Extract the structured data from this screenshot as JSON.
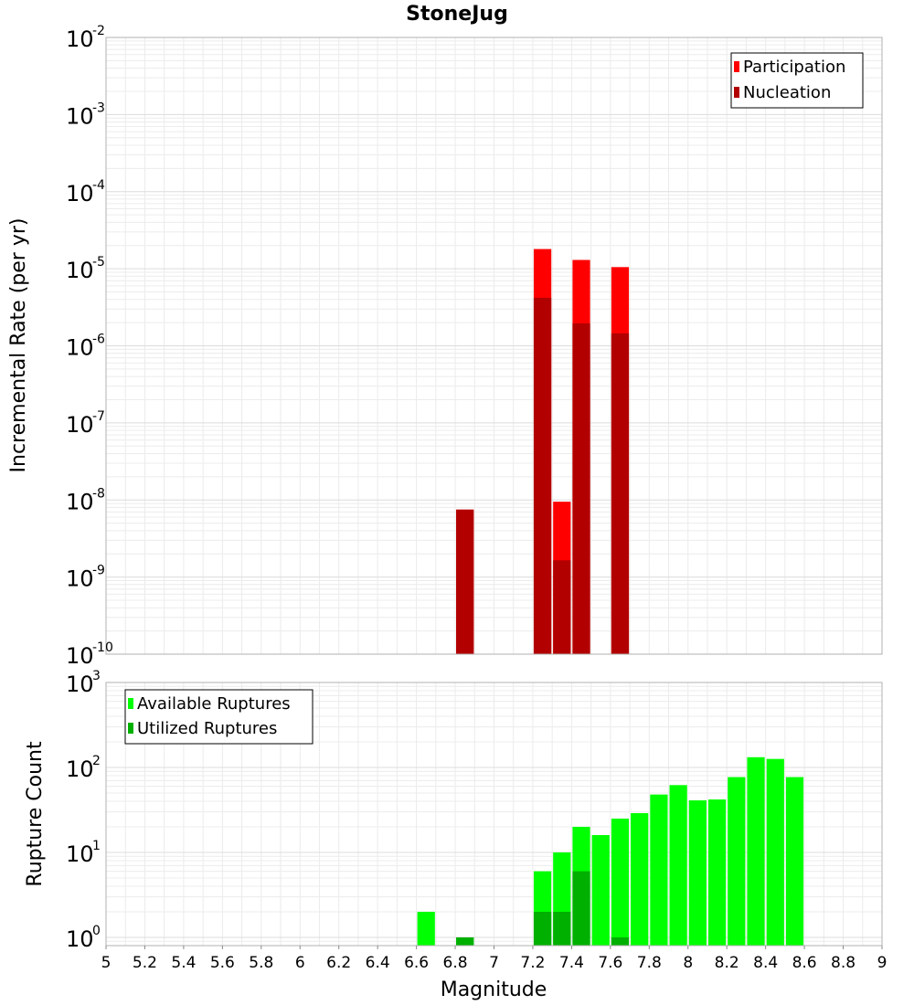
{
  "chart_data": [
    {
      "type": "bar",
      "panel": "top",
      "title": "StoneJug",
      "ylabel": "Incremental Rate (per yr)",
      "yscale": "log",
      "ylim": [
        1e-10,
        0.01
      ],
      "xlim": [
        5,
        9
      ],
      "grid": true,
      "legend_position": "top-right",
      "legend": [
        "Participation",
        "Nucleation"
      ],
      "colors": {
        "Participation": "#ff0000",
        "Nucleation": "#b20000"
      },
      "bar_width": 0.1,
      "series": [
        {
          "name": "Participation",
          "x": [
            6.85,
            7.25,
            7.35,
            7.45,
            7.65
          ],
          "values": [
            7.5e-09,
            1.8e-05,
            9.5e-09,
            1.3e-05,
            1.05e-05
          ]
        },
        {
          "name": "Nucleation",
          "x": [
            6.85,
            7.25,
            7.35,
            7.45,
            7.65
          ],
          "values": [
            7.5e-09,
            4.2e-06,
            1.65e-09,
            1.95e-06,
            1.45e-06
          ]
        }
      ]
    },
    {
      "type": "bar",
      "panel": "bottom",
      "xlabel": "Magnitude",
      "ylabel": "Rupture Count",
      "yscale": "log",
      "ylim": [
        0.8,
        1000
      ],
      "xlim": [
        5,
        9
      ],
      "xticks": [
        "5",
        "5.2",
        "5.4",
        "5.6",
        "5.8",
        "6",
        "6.2",
        "6.4",
        "6.6",
        "6.8",
        "7",
        "7.2",
        "7.4",
        "7.6",
        "7.8",
        "8",
        "8.2",
        "8.4",
        "8.6",
        "8.8",
        "9"
      ],
      "grid": true,
      "legend_position": "top-left",
      "legend": [
        "Available Ruptures",
        "Utilized Ruptures"
      ],
      "colors": {
        "Available Ruptures": "#00ff00",
        "Utilized Ruptures": "#00b000"
      },
      "bar_width": 0.1,
      "series": [
        {
          "name": "Available Ruptures",
          "x": [
            6.65,
            6.85,
            7.25,
            7.35,
            7.45,
            7.55,
            7.65,
            7.75,
            7.85,
            7.95,
            8.05,
            8.15,
            8.25,
            8.35,
            8.45,
            8.55
          ],
          "values": [
            2,
            1,
            6,
            10,
            20,
            16,
            25,
            29,
            48,
            62,
            41,
            42,
            77,
            132,
            126,
            77
          ]
        },
        {
          "name": "Utilized Ruptures",
          "x": [
            6.85,
            7.25,
            7.35,
            7.45,
            7.65
          ],
          "values": [
            1,
            2,
            2,
            6,
            1
          ]
        }
      ]
    }
  ]
}
